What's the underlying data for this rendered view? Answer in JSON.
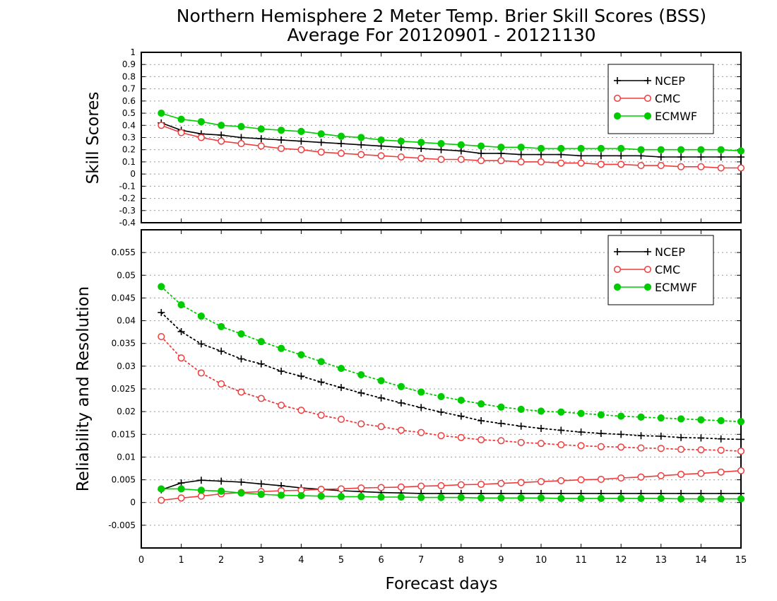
{
  "title_line1": "Northern Hemisphere 2 Meter Temp. Brier Skill Scores (BSS)",
  "title_line2": "Average For 20120901 - 20121130",
  "xlabel": "Forecast days",
  "colors": {
    "NCEP": "#000000",
    "CMC": "#f03c3c",
    "ECMWF": "#00cc00",
    "grid": "#999999"
  },
  "chart_data": [
    {
      "type": "line",
      "panel": "top",
      "ylabel": "Skill Scores",
      "xlim": [
        0,
        15
      ],
      "ylim": [
        -0.4,
        1
      ],
      "x_ticks": [
        0,
        1,
        2,
        3,
        4,
        5,
        6,
        7,
        8,
        9,
        10,
        11,
        12,
        13,
        14,
        15
      ],
      "y_ticks": [
        "-0.4",
        "-0.3",
        "-0.2",
        "-0.1",
        "0",
        "0.1",
        "0.2",
        "0.3",
        "0.4",
        "0.5",
        "0.6",
        "0.7",
        "0.8",
        "0.9",
        "1"
      ],
      "grid": true,
      "legend": {
        "position": "top-right",
        "entries": [
          "NCEP",
          "CMC",
          "ECMWF"
        ]
      },
      "x": [
        0.5,
        1,
        1.5,
        2,
        2.5,
        3,
        3.5,
        4,
        4.5,
        5,
        5.5,
        6,
        6.5,
        7,
        7.5,
        8,
        8.5,
        9,
        9.5,
        10,
        10.5,
        11,
        11.5,
        12,
        12.5,
        13,
        13.5,
        14,
        14.5,
        15
      ],
      "series": [
        {
          "name": "NCEP",
          "marker": "plus",
          "style": "solid",
          "values": [
            0.42,
            0.36,
            0.33,
            0.32,
            0.3,
            0.29,
            0.28,
            0.27,
            0.26,
            0.25,
            0.24,
            0.23,
            0.22,
            0.21,
            0.2,
            0.19,
            0.17,
            0.17,
            0.16,
            0.16,
            0.16,
            0.15,
            0.15,
            0.15,
            0.15,
            0.14,
            0.14,
            0.14,
            0.14,
            0.14
          ]
        },
        {
          "name": "CMC",
          "marker": "circle-open",
          "style": "solid",
          "values": [
            0.4,
            0.34,
            0.3,
            0.27,
            0.25,
            0.23,
            0.21,
            0.2,
            0.18,
            0.17,
            0.16,
            0.15,
            0.14,
            0.13,
            0.12,
            0.12,
            0.11,
            0.11,
            0.1,
            0.1,
            0.09,
            0.09,
            0.08,
            0.08,
            0.07,
            0.07,
            0.06,
            0.06,
            0.05,
            0.05
          ]
        },
        {
          "name": "ECMWF",
          "marker": "circle-filled",
          "style": "solid",
          "values": [
            0.5,
            0.45,
            0.43,
            0.4,
            0.39,
            0.37,
            0.36,
            0.35,
            0.33,
            0.31,
            0.3,
            0.28,
            0.27,
            0.26,
            0.25,
            0.24,
            0.23,
            0.22,
            0.22,
            0.21,
            0.21,
            0.21,
            0.21,
            0.21,
            0.2,
            0.2,
            0.2,
            0.2,
            0.2,
            0.19
          ]
        }
      ]
    },
    {
      "type": "line",
      "panel": "bottom",
      "ylabel": "Reliability and Resolution",
      "xlim": [
        0,
        15
      ],
      "ylim": [
        -0.01,
        0.06
      ],
      "x_ticks": [
        0,
        1,
        2,
        3,
        4,
        5,
        6,
        7,
        8,
        9,
        10,
        11,
        12,
        13,
        14,
        15
      ],
      "y_ticks": [
        "-0.005",
        "0",
        "0.005",
        "0.01",
        "0.015",
        "0.02",
        "0.025",
        "0.03",
        "0.035",
        "0.04",
        "0.045",
        "0.05",
        "0.055"
      ],
      "grid": true,
      "legend": {
        "position": "top-right",
        "entries": [
          "NCEP",
          "CMC",
          "ECMWF"
        ]
      },
      "x": [
        0.5,
        1,
        1.5,
        2,
        2.5,
        3,
        3.5,
        4,
        4.5,
        5,
        5.5,
        6,
        6.5,
        7,
        7.5,
        8,
        8.5,
        9,
        9.5,
        10,
        10.5,
        11,
        11.5,
        12,
        12.5,
        13,
        13.5,
        14,
        14.5,
        15
      ],
      "series": [
        {
          "name": "NCEP",
          "marker": "plus",
          "style": "dotted",
          "values": [
            0.0418,
            0.0376,
            0.0349,
            0.0333,
            0.0316,
            0.0305,
            0.0289,
            0.0278,
            0.0265,
            0.0253,
            0.0241,
            0.023,
            0.0219,
            0.0209,
            0.0199,
            0.019,
            0.018,
            0.0174,
            0.0168,
            0.0163,
            0.0159,
            0.0155,
            0.0152,
            0.015,
            0.0147,
            0.0146,
            0.0143,
            0.0142,
            0.014,
            0.0139
          ]
        },
        {
          "name": "CMC",
          "marker": "circle-open",
          "style": "dotted",
          "values": [
            0.0365,
            0.0318,
            0.0285,
            0.0261,
            0.0243,
            0.0229,
            0.0214,
            0.0203,
            0.0192,
            0.0183,
            0.0173,
            0.0167,
            0.0159,
            0.0154,
            0.0147,
            0.0143,
            0.0138,
            0.0136,
            0.0132,
            0.013,
            0.0127,
            0.0125,
            0.0123,
            0.0122,
            0.012,
            0.0119,
            0.0117,
            0.0116,
            0.0115,
            0.0113
          ]
        },
        {
          "name": "ECMWF",
          "marker": "circle-filled",
          "style": "dotted",
          "values": [
            0.0475,
            0.0435,
            0.041,
            0.0387,
            0.0371,
            0.0354,
            0.0339,
            0.0325,
            0.031,
            0.0295,
            0.0281,
            0.0268,
            0.0255,
            0.0243,
            0.0233,
            0.0225,
            0.0217,
            0.021,
            0.0205,
            0.0201,
            0.0199,
            0.0196,
            0.0193,
            0.019,
            0.0188,
            0.0186,
            0.0184,
            0.0182,
            0.018,
            0.0178
          ]
        },
        {
          "name": "NCEP",
          "marker": "plus",
          "style": "solid",
          "values": [
            0.0028,
            0.0043,
            0.0049,
            0.0047,
            0.0045,
            0.0041,
            0.0037,
            0.0032,
            0.0029,
            0.0026,
            0.0024,
            0.0022,
            0.0021,
            0.002,
            0.002,
            0.002,
            0.002,
            0.002,
            0.002,
            0.002,
            0.002,
            0.002,
            0.002,
            0.002,
            0.002,
            0.002,
            0.002,
            0.002,
            0.002,
            0.002
          ]
        },
        {
          "name": "CMC",
          "marker": "circle-open",
          "style": "solid",
          "values": [
            0.0005,
            0.001,
            0.0014,
            0.0019,
            0.0022,
            0.0024,
            0.0026,
            0.0027,
            0.0029,
            0.003,
            0.0032,
            0.0033,
            0.0034,
            0.0036,
            0.0037,
            0.0039,
            0.004,
            0.0042,
            0.0044,
            0.0046,
            0.0048,
            0.005,
            0.0051,
            0.0054,
            0.0056,
            0.0059,
            0.0062,
            0.0064,
            0.0067,
            0.007
          ]
        },
        {
          "name": "ECMWF",
          "marker": "circle-filled",
          "style": "solid",
          "values": [
            0.003,
            0.003,
            0.0027,
            0.0025,
            0.0021,
            0.0018,
            0.0016,
            0.0015,
            0.0014,
            0.0013,
            0.0013,
            0.0012,
            0.0012,
            0.0011,
            0.0011,
            0.0011,
            0.001,
            0.001,
            0.001,
            0.001,
            0.0009,
            0.0009,
            0.0009,
            0.0009,
            0.0009,
            0.0009,
            0.0008,
            0.0008,
            0.0008,
            0.0008
          ]
        }
      ]
    }
  ]
}
